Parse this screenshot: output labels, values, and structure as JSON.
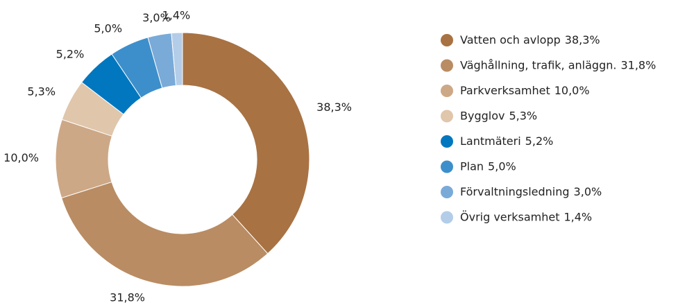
{
  "chart_data": {
    "type": "pie",
    "categories": [
      "Vatten och avlopp",
      "Väghållning, trafik, anläggn.",
      "Parkverksamhet",
      "Bygglov",
      "Lantmäteri",
      "Plan",
      "Förvaltningsledning",
      "Övrig verksamhet"
    ],
    "values": [
      38.3,
      31.8,
      10.0,
      5.3,
      5.2,
      5.0,
      3.0,
      1.4
    ],
    "value_labels": [
      "38,3%",
      "31,8%",
      "10,0%",
      "5,3%",
      "5,2%",
      "5,0%",
      "3,0%",
      "1,4%"
    ],
    "colors": [
      "#a87243",
      "#b98c63",
      "#cda886",
      "#e0c6ab",
      "#0077be",
      "#3d8fcb",
      "#7aaad8",
      "#b3cde9"
    ],
    "donut": true,
    "legend": "right"
  }
}
